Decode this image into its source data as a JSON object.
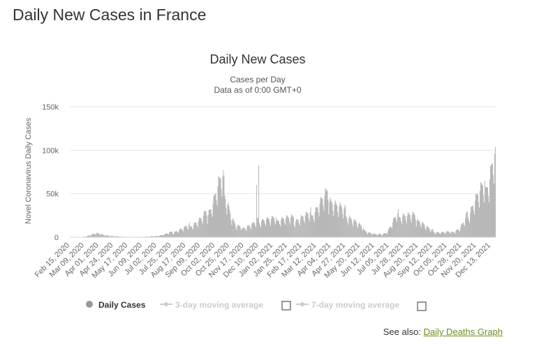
{
  "page": {
    "title": "Daily New Cases in France",
    "see_also_label": "See also:",
    "see_also_link": "Daily Deaths Graph"
  },
  "colors": {
    "bar": "#a6a6a6",
    "grid": "#e6e6e6",
    "text": "#333333",
    "muted": "#cccccc",
    "link": "#6b8e23"
  },
  "legend": {
    "items": [
      {
        "label": "Daily Cases",
        "active": true
      },
      {
        "label": "3-day moving average",
        "active": false
      },
      {
        "label": "7-day moving average",
        "active": false
      }
    ]
  },
  "chart_data": {
    "type": "bar",
    "title": "Daily New Cases",
    "subtitle_lines": [
      "Cases per Day",
      "Data as of 0:00 GMT+0"
    ],
    "xlabel": "",
    "ylabel": "Novel Coronavirus Daily Cases",
    "ylim": [
      0,
      150000
    ],
    "yticks": [
      0,
      50000,
      100000,
      150000
    ],
    "ytick_labels": [
      "0",
      "50k",
      "100k",
      "150k"
    ],
    "grid": true,
    "x_tick_labels": [
      "Feb 15, 2020",
      "Mar 09, 2020",
      "Apr 01, 2020",
      "Apr 24, 2020",
      "May 17, 2020",
      "Jun 09, 2020",
      "Jul 02, 2020",
      "Jul 25, 2020",
      "Aug 17, 2020",
      "Sep 09, 2020",
      "Oct 02, 2020",
      "Oct 25, 2020",
      "Nov 17, 2020",
      "Dec 10, 2020",
      "Jan 02, 2021",
      "Jan 25, 2021",
      "Feb 17, 2021",
      "Mar 12, 2021",
      "Apr 04, 2021",
      "Apr 27, 2021",
      "May 20, 2021",
      "Jun 12, 2021",
      "Jul 05, 2021",
      "Jul 28, 2021",
      "Aug 20, 2021",
      "Sep 12, 2021",
      "Oct 05, 2021",
      "Oct 28, 2021",
      "Nov 20, 2021",
      "Dec 13, 2021"
    ],
    "series": [
      {
        "name": "Daily Cases",
        "weekly_values": [
          0,
          0,
          100,
          1000,
          3000,
          4500,
          3500,
          2500,
          1500,
          1000,
          800,
          500,
          400,
          400,
          500,
          600,
          800,
          1200,
          1800,
          3000,
          4500,
          6000,
          8000,
          10000,
          12000,
          15000,
          18000,
          22000,
          28000,
          38000,
          55000,
          65000,
          45000,
          22000,
          12000,
          11000,
          12000,
          14000,
          16000,
          20000,
          21000,
          20000,
          20000,
          21000,
          22000,
          21000,
          20000,
          22000,
          24000,
          25000,
          30000,
          38000,
          44000,
          48000,
          40000,
          35000,
          30000,
          25000,
          20000,
          15000,
          10000,
          6000,
          4000,
          3000,
          3500,
          6000,
          15000,
          24000,
          26000,
          25000,
          24000,
          22000,
          18000,
          12000,
          8000,
          6000,
          5500,
          5500,
          6000,
          7000,
          10000,
          18000,
          30000,
          42000,
          50000,
          55000,
          68000,
          95000
        ]
      }
    ]
  }
}
